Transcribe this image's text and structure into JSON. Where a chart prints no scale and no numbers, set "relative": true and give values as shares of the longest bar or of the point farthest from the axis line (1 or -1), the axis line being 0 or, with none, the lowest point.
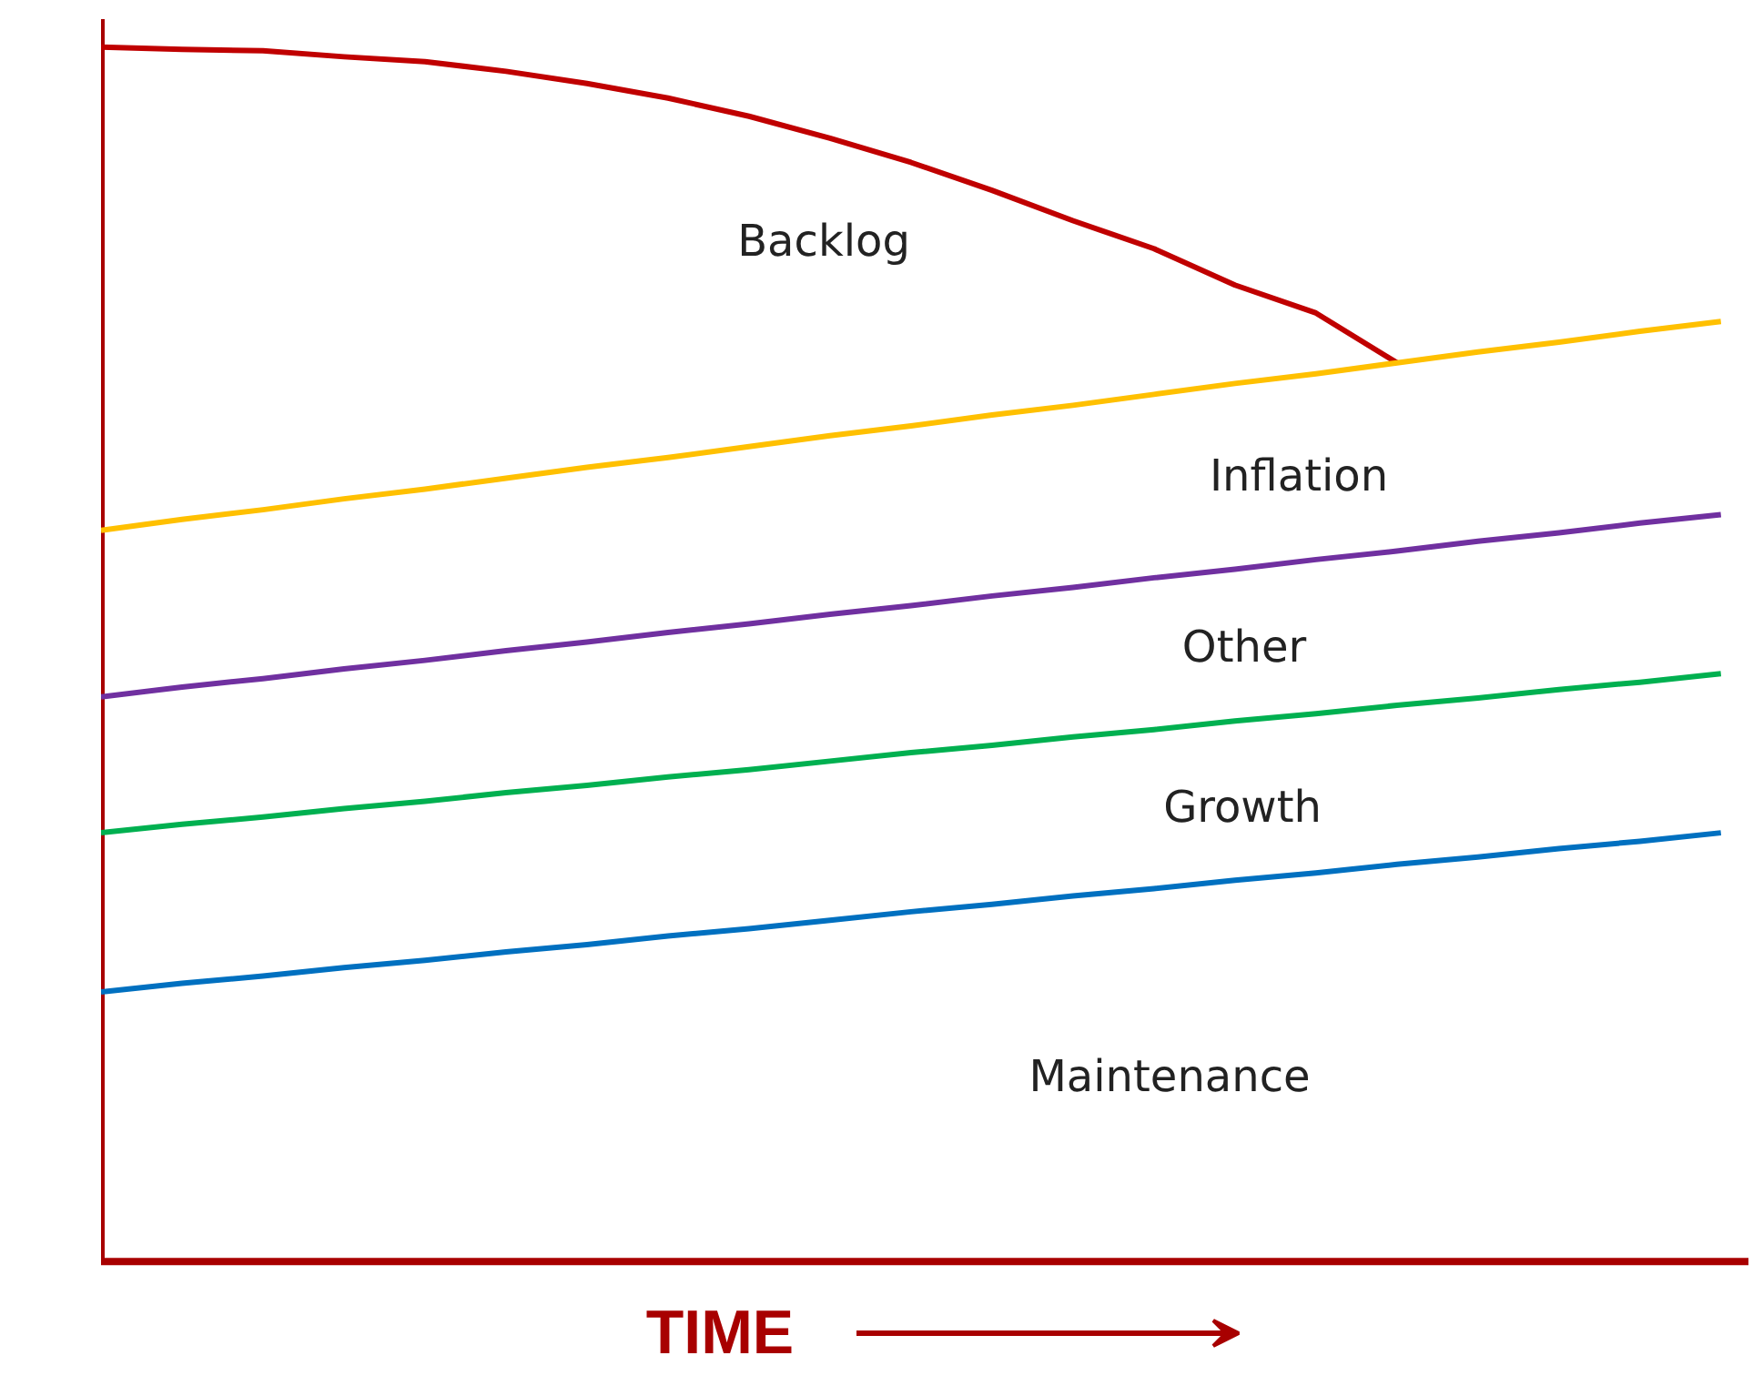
{
  "chart_data": {
    "type": "line",
    "relative": true,
    "xlabel": "TIME",
    "marker": "none",
    "line_style": "solid",
    "categories": [
      null,
      null,
      null,
      null,
      null,
      null,
      null,
      null,
      null,
      null,
      null,
      null,
      null,
      null,
      null,
      null,
      null,
      null,
      null,
      null,
      null
    ],
    "series": [
      {
        "color": "#c00000",
        "values": [
          1.0,
          0.998,
          0.997,
          0.992,
          0.988,
          0.98,
          0.97,
          0.958,
          0.943,
          0.925,
          0.905,
          0.882,
          0.857,
          0.834,
          0.804,
          0.781,
          0.74,
          null,
          null,
          null,
          null
        ]
      },
      {
        "color": "#ffc000",
        "values": [
          0.602,
          0.611,
          0.619,
          0.628,
          0.636,
          0.645,
          0.654,
          0.662,
          0.671,
          0.68,
          0.688,
          0.697,
          0.705,
          0.714,
          0.723,
          0.731,
          0.74,
          0.749,
          0.757,
          0.766,
          0.774
        ]
      },
      {
        "color": "#7030a0",
        "values": [
          0.465,
          0.473,
          0.48,
          0.488,
          0.495,
          0.503,
          0.51,
          0.518,
          0.525,
          0.533,
          0.54,
          0.548,
          0.555,
          0.563,
          0.57,
          0.578,
          0.585,
          0.593,
          0.6,
          0.608,
          0.615
        ]
      },
      {
        "color": "#00b050",
        "values": [
          0.353,
          0.36,
          0.366,
          0.373,
          0.379,
          0.386,
          0.392,
          0.399,
          0.405,
          0.412,
          0.419,
          0.425,
          0.432,
          0.438,
          0.445,
          0.451,
          0.458,
          0.464,
          0.471,
          0.477,
          0.484
        ]
      },
      {
        "color": "#0070c0",
        "values": [
          0.222,
          0.229,
          0.235,
          0.242,
          0.248,
          0.255,
          0.261,
          0.268,
          0.274,
          0.281,
          0.288,
          0.294,
          0.301,
          0.307,
          0.314,
          0.32,
          0.327,
          0.333,
          0.34,
          0.346,
          0.353
        ]
      }
    ],
    "annotations": [
      "Backlog",
      "Inflation",
      "Other",
      "Growth",
      "Maintenance"
    ]
  }
}
